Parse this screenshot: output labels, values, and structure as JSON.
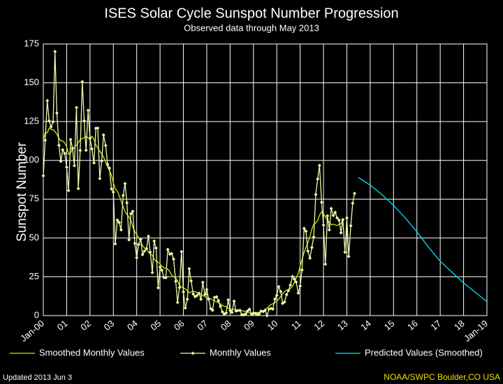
{
  "chart_data": {
    "type": "line",
    "title": "ISES Solar Cycle Sunspot Number Progression",
    "subtitle": "Observed data through May 2013",
    "y_label": "Sunspot Number",
    "footer_left": "Updated 2013 Jun  3",
    "footer_right": "NOAA/SWPC Boulder,CO USA",
    "xlim": [
      2000,
      2019
    ],
    "ylim": [
      0,
      175
    ],
    "yticks": [
      0,
      25,
      50,
      75,
      100,
      125,
      150,
      175
    ],
    "xticks": [
      {
        "value": 2000,
        "label": "Jan-00"
      },
      {
        "value": 2001,
        "label": "01"
      },
      {
        "value": 2002,
        "label": "02"
      },
      {
        "value": 2003,
        "label": "03"
      },
      {
        "value": 2004,
        "label": "04"
      },
      {
        "value": 2005,
        "label": "05"
      },
      {
        "value": 2006,
        "label": "06"
      },
      {
        "value": 2007,
        "label": "07"
      },
      {
        "value": 2008,
        "label": "08"
      },
      {
        "value": 2009,
        "label": "09"
      },
      {
        "value": 2010,
        "label": "10"
      },
      {
        "value": 2011,
        "label": "11"
      },
      {
        "value": 2012,
        "label": "12"
      },
      {
        "value": 2013,
        "label": "13"
      },
      {
        "value": 2014,
        "label": "14"
      },
      {
        "value": 2015,
        "label": "15"
      },
      {
        "value": 2016,
        "label": "16"
      },
      {
        "value": 2017,
        "label": "17"
      },
      {
        "value": 2018,
        "label": "18"
      },
      {
        "value": 2019,
        "label": "Jan-19"
      }
    ],
    "grid": true,
    "series": [
      {
        "name": "Smoothed Monthly Values",
        "color": "#e0e000",
        "markers": false,
        "x": [
          2000,
          2000.08,
          2000.17,
          2000.25,
          2000.33,
          2000.42,
          2000.5,
          2000.58,
          2000.67,
          2000.75,
          2000.83,
          2000.92,
          2001,
          2001.08,
          2001.17,
          2001.25,
          2001.33,
          2001.42,
          2001.5,
          2001.58,
          2001.67,
          2001.75,
          2001.83,
          2001.92,
          2002,
          2002.08,
          2002.17,
          2002.25,
          2002.33,
          2002.42,
          2002.5,
          2002.58,
          2002.67,
          2002.75,
          2002.83,
          2002.92,
          2003,
          2003.08,
          2003.17,
          2003.25,
          2003.33,
          2003.42,
          2003.5,
          2003.58,
          2003.67,
          2003.75,
          2003.83,
          2003.92,
          2004,
          2004.08,
          2004.17,
          2004.25,
          2004.33,
          2004.42,
          2004.5,
          2004.58,
          2004.67,
          2004.75,
          2004.83,
          2004.92,
          2005,
          2005.08,
          2005.17,
          2005.25,
          2005.33,
          2005.42,
          2005.5,
          2005.58,
          2005.67,
          2005.75,
          2005.83,
          2005.92,
          2006,
          2006.08,
          2006.17,
          2006.25,
          2006.33,
          2006.42,
          2006.5,
          2006.58,
          2006.67,
          2006.75,
          2006.83,
          2006.92,
          2007,
          2007.08,
          2007.17,
          2007.25,
          2007.33,
          2007.42,
          2007.5,
          2007.58,
          2007.67,
          2007.75,
          2007.83,
          2007.92,
          2008,
          2008.08,
          2008.17,
          2008.25,
          2008.33,
          2008.42,
          2008.5,
          2008.58,
          2008.67,
          2008.75,
          2008.83,
          2008.92,
          2009,
          2009.08,
          2009.17,
          2009.25,
          2009.33,
          2009.42,
          2009.5,
          2009.58,
          2009.67,
          2009.75,
          2009.83,
          2009.92,
          2010,
          2010.08,
          2010.17,
          2010.25,
          2010.33,
          2010.42,
          2010.5,
          2010.58,
          2010.67,
          2010.75,
          2010.83,
          2010.92,
          2011,
          2011.08,
          2011.17,
          2011.25,
          2011.33,
          2011.42,
          2011.5,
          2011.58,
          2011.67,
          2011.75,
          2011.83,
          2011.92,
          2012,
          2012.08,
          2012.17,
          2012.25,
          2012.33,
          2012.42,
          2012.5,
          2012.58,
          2012.67,
          2012.75,
          2012.83
        ],
        "values": [
          112.9,
          117.9,
          117.8,
          120.8,
          120.0,
          119.8,
          118.6,
          116.9,
          114.2,
          112.7,
          112.5,
          111.2,
          108.7,
          104.0,
          104.8,
          107.5,
          108.6,
          109.8,
          111.7,
          113.2,
          114.1,
          114.6,
          115.5,
          114.6,
          114.3,
          115.6,
          113.5,
          110.0,
          108.0,
          106.0,
          104.2,
          102.2,
          98.7,
          96.0,
          93.4,
          90.5,
          85.5,
          81.5,
          80.2,
          77.4,
          73.9,
          70.3,
          67.0,
          65.2,
          63.6,
          61.2,
          57.3,
          54.2,
          52.0,
          50.3,
          47.9,
          45.0,
          43.6,
          42.9,
          41.0,
          39.7,
          38.9,
          36.4,
          34.9,
          34.4,
          33.2,
          31.9,
          30.6,
          30.6,
          29.8,
          28.3,
          26.1,
          25.0,
          24.3,
          22.4,
          19.5,
          18.5,
          17.7,
          17.2,
          15.9,
          14.7,
          15.3,
          15.5,
          15.4,
          14.8,
          14.3,
          13.5,
          12.7,
          12.5,
          11.3,
          10.9,
          10.8,
          10.1,
          9.6,
          8.8,
          8.4,
          7.6,
          6.6,
          6.0,
          5.8,
          4.8,
          4.2,
          4.1,
          4.0,
          3.7,
          3.5,
          3.3,
          3.1,
          2.9,
          2.7,
          2.0,
          1.7,
          1.7,
          1.8,
          1.9,
          2.0,
          2.2,
          2.3,
          2.7,
          3.6,
          4.8,
          6.2,
          7.1,
          7.6,
          8.3,
          9.3,
          10.6,
          12.3,
          14.0,
          15.5,
          16.4,
          16.7,
          17.4,
          18.8,
          21.3,
          24.1,
          27.3,
          31.8,
          36.1,
          40.7,
          44.0,
          46.9,
          51.1,
          55.5,
          58.8,
          59.7,
          61.1,
          64.7,
          66.9,
          65.5,
          63.6,
          61.5,
          60.1,
          58.6,
          58.9,
          58.5,
          58.0,
          58.8,
          59.2,
          62.0
        ]
      },
      {
        "name": "Monthly Values",
        "color": "#e8ffa8",
        "markers": true,
        "x": [
          2000,
          2000.08,
          2000.17,
          2000.25,
          2000.33,
          2000.42,
          2000.5,
          2000.58,
          2000.67,
          2000.75,
          2000.83,
          2000.92,
          2001,
          2001.08,
          2001.17,
          2001.25,
          2001.33,
          2001.42,
          2001.5,
          2001.58,
          2001.67,
          2001.75,
          2001.83,
          2001.92,
          2002,
          2002.08,
          2002.17,
          2002.25,
          2002.33,
          2002.42,
          2002.5,
          2002.58,
          2002.67,
          2002.75,
          2002.83,
          2002.92,
          2003,
          2003.08,
          2003.17,
          2003.25,
          2003.33,
          2003.42,
          2003.5,
          2003.58,
          2003.67,
          2003.75,
          2003.83,
          2003.92,
          2004,
          2004.08,
          2004.17,
          2004.25,
          2004.33,
          2004.42,
          2004.5,
          2004.58,
          2004.67,
          2004.75,
          2004.83,
          2004.92,
          2005,
          2005.08,
          2005.17,
          2005.25,
          2005.33,
          2005.42,
          2005.5,
          2005.58,
          2005.67,
          2005.75,
          2005.83,
          2005.92,
          2006,
          2006.08,
          2006.17,
          2006.25,
          2006.33,
          2006.42,
          2006.5,
          2006.58,
          2006.67,
          2006.75,
          2006.83,
          2006.92,
          2007,
          2007.08,
          2007.17,
          2007.25,
          2007.33,
          2007.42,
          2007.5,
          2007.58,
          2007.67,
          2007.75,
          2007.83,
          2007.92,
          2008,
          2008.08,
          2008.17,
          2008.25,
          2008.33,
          2008.42,
          2008.5,
          2008.58,
          2008.67,
          2008.75,
          2008.83,
          2008.92,
          2009,
          2009.08,
          2009.17,
          2009.25,
          2009.33,
          2009.42,
          2009.5,
          2009.58,
          2009.67,
          2009.75,
          2009.83,
          2009.92,
          2010,
          2010.08,
          2010.17,
          2010.25,
          2010.33,
          2010.42,
          2010.5,
          2010.58,
          2010.67,
          2010.75,
          2010.83,
          2010.92,
          2011,
          2011.08,
          2011.17,
          2011.25,
          2011.33,
          2011.42,
          2011.5,
          2011.58,
          2011.67,
          2011.75,
          2011.83,
          2011.92,
          2012,
          2012.08,
          2012.17,
          2012.25,
          2012.33,
          2012.42,
          2012.5,
          2012.58,
          2012.67,
          2012.75,
          2012.83,
          2012.92,
          2013,
          2013.08,
          2013.17,
          2013.25,
          2013.33
        ],
        "values": [
          90.1,
          112.9,
          138.5,
          125.5,
          121.6,
          124.9,
          170.1,
          130.5,
          109.7,
          99.4,
          106.8,
          104.4,
          95.6,
          80.6,
          113.5,
          107.7,
          96.6,
          134.0,
          81.8,
          106.4,
          150.7,
          125.5,
          106.5,
          132.2,
          114.1,
          107.4,
          98.4,
          120.7,
          120.8,
          88.3,
          99.6,
          116.4,
          109.6,
          97.5,
          95.0,
          81.6,
          79.5,
          46.2,
          61.5,
          60.0,
          55.2,
          77.4,
          85.0,
          72.7,
          48.8,
          65.6,
          67.2,
          46.5,
          37.3,
          45.8,
          49.1,
          39.3,
          41.5,
          43.2,
          51.1,
          40.9,
          27.7,
          48.0,
          43.5,
          17.9,
          31.3,
          29.2,
          24.5,
          24.4,
          42.6,
          39.6,
          39.9,
          36.4,
          22.1,
          8.5,
          18.0,
          41.2,
          15.3,
          4.9,
          10.6,
          30.2,
          22.3,
          13.9,
          12.2,
          12.9,
          14.4,
          10.5,
          21.4,
          13.6,
          16.8,
          10.7,
          4.5,
          3.4,
          11.7,
          12.1,
          9.7,
          6.0,
          2.4,
          0.9,
          1.7,
          10.1,
          3.3,
          2.1,
          9.3,
          2.9,
          3.2,
          3.4,
          0.5,
          0.5,
          1.1,
          2.9,
          4.1,
          0.8,
          1.5,
          1.4,
          0.7,
          1.2,
          2.9,
          2.6,
          3.5,
          0.0,
          4.2,
          4.6,
          4.2,
          10.6,
          13.1,
          18.6,
          15.4,
          7.9,
          8.8,
          13.5,
          16.1,
          19.6,
          25.2,
          23.5,
          21.6,
          14.5,
          19.0,
          29.4,
          56.2,
          54.4,
          41.6,
          37.0,
          43.8,
          50.6,
          78.0,
          88.0,
          96.7,
          73.0,
          58.3,
          33.1,
          64.3,
          55.2,
          69.0,
          64.5,
          66.5,
          63.0,
          61.4,
          53.3,
          61.8,
          40.8,
          62.9,
          38.1,
          57.9,
          72.4,
          78.7
        ]
      },
      {
        "name": "Predicted Values (Smoothed)",
        "color": "#00e0f0",
        "markers": false,
        "x": [
          2013.5,
          2014,
          2014.5,
          2015,
          2015.5,
          2016,
          2016.5,
          2017,
          2017.5,
          2018,
          2018.5,
          2019
        ],
        "values": [
          89,
          84,
          78,
          71,
          63,
          54,
          44,
          35,
          28,
          21,
          15,
          9
        ]
      }
    ]
  }
}
